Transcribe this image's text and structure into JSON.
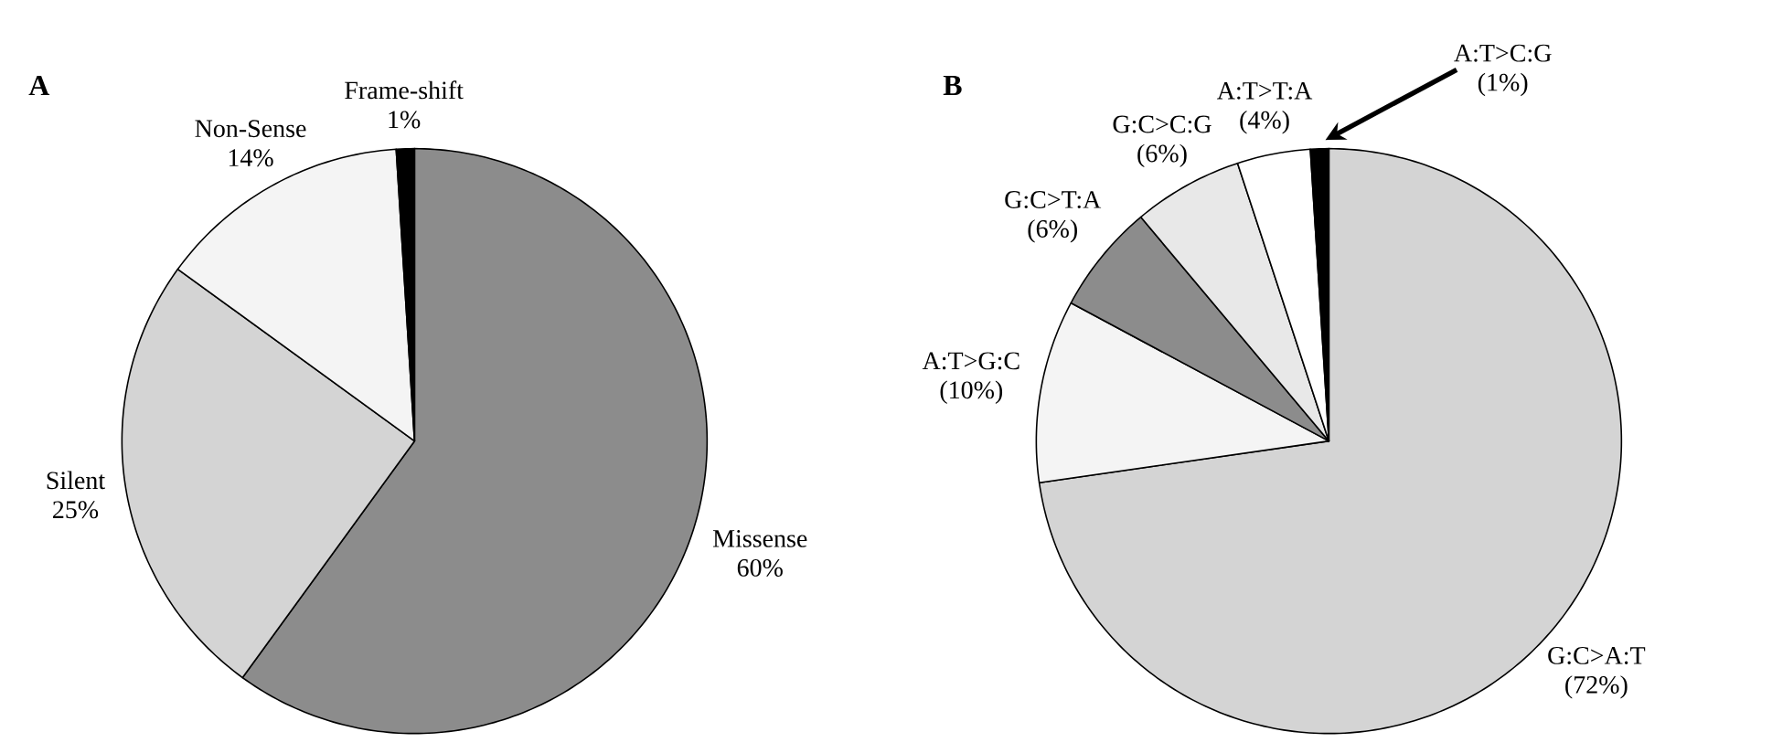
{
  "chart_data": [
    {
      "type": "pie",
      "title": "A",
      "categories": [
        "Missense",
        "Silent",
        "Non-Sense",
        "Frame-shift"
      ],
      "values": [
        60,
        25,
        14,
        1
      ],
      "value_labels": [
        "60%",
        "25%",
        "14%",
        "1%"
      ],
      "colors": [
        "#8c8c8c",
        "#d4d4d4",
        "#f4f4f4",
        "#000000"
      ]
    },
    {
      "type": "pie",
      "title": "B",
      "categories": [
        "G:C>A:T",
        "A:T>G:C",
        "G:C>T:A",
        "G:C>C:G",
        "A:T>T:A",
        "A:T>C:G"
      ],
      "values": [
        72,
        10,
        6,
        6,
        4,
        1
      ],
      "value_labels": [
        "(72%)",
        "(10%)",
        "(6%)",
        "(6%)",
        "(4%)",
        "(1%)"
      ],
      "colors": [
        "#d4d4d4",
        "#f4f4f4",
        "#8c8c8c",
        "#e8e8e8",
        "#ffffff",
        "#000000"
      ]
    }
  ]
}
